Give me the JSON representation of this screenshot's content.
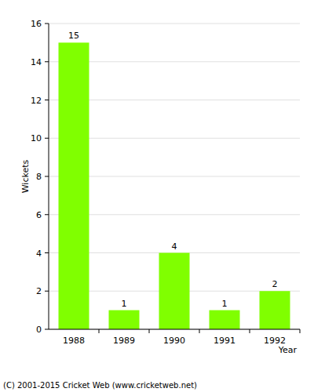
{
  "chart_data": {
    "type": "bar",
    "x_label": "Year",
    "y_label": "Wickets",
    "categories": [
      "1988",
      "1989",
      "1990",
      "1991",
      "1992"
    ],
    "values": [
      15,
      1,
      4,
      1,
      2
    ],
    "color": "#80ff00",
    "ylim": [
      0,
      16
    ],
    "yticks": [
      0,
      2,
      4,
      6,
      8,
      10,
      12,
      14,
      16
    ],
    "grid": true,
    "data_labels": true,
    "annotations": [
      "(C) 2001-2015 Cricket Web (www.cricketweb.net)"
    ]
  }
}
